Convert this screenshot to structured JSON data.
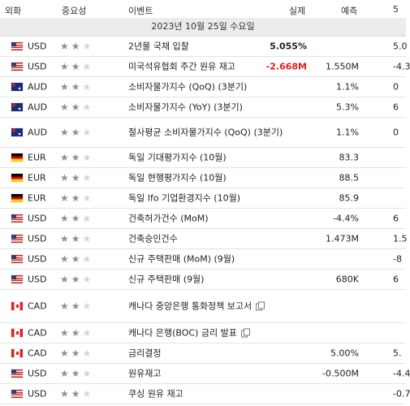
{
  "header": {
    "currency": "외화",
    "importance": "중요성",
    "event": "이벤트",
    "actual": "실제",
    "forecast": "예측",
    "previous": "5"
  },
  "date_band": "2023년 10월 25일 수요일",
  "colors": {
    "negative": "#e01d1d",
    "star_on": "#8f8f8f",
    "star_off": "#d4d4d4"
  },
  "rows": [
    {
      "flag": "us",
      "currency": "USD",
      "stars": 2,
      "event": "2년물 국채 입찰",
      "actual": "5.055%",
      "actual_color": "pos",
      "forecast": "",
      "previous": "5.0",
      "doc": false,
      "height": "normal"
    },
    {
      "flag": "us",
      "currency": "USD",
      "stars": 2,
      "event": "미국석유협회 주간 원유 재고",
      "actual": "-2.668M",
      "actual_color": "neg",
      "forecast": "1.550M",
      "previous": "-4.3",
      "doc": false,
      "height": "normal"
    },
    {
      "flag": "au",
      "currency": "AUD",
      "stars": 2,
      "event": "소비자물가지수 (QoQ) (3분기)",
      "actual": "",
      "actual_color": "pos",
      "forecast": "1.1%",
      "previous": "0",
      "doc": false,
      "height": "normal"
    },
    {
      "flag": "au",
      "currency": "AUD",
      "stars": 2,
      "event": "소비자물가지수 (YoY) (3분기)",
      "actual": "",
      "actual_color": "pos",
      "forecast": "5.3%",
      "previous": "6",
      "doc": false,
      "height": "normal"
    },
    {
      "flag": "au",
      "currency": "AUD",
      "stars": 2,
      "event": "절사평균 소비자물가지수 (QoQ) (3분기)",
      "actual": "",
      "actual_color": "pos",
      "forecast": "1.1%",
      "previous": "0",
      "doc": false,
      "height": "tall"
    },
    {
      "flag": "de",
      "currency": "EUR",
      "stars": 2,
      "event": "독일 기대평가지수 (10월)",
      "actual": "",
      "actual_color": "pos",
      "forecast": "83.3",
      "previous": "",
      "doc": false,
      "height": "normal"
    },
    {
      "flag": "de",
      "currency": "EUR",
      "stars": 2,
      "event": "독일 현행평가지수 (10월)",
      "actual": "",
      "actual_color": "pos",
      "forecast": "88.5",
      "previous": "",
      "doc": false,
      "height": "normal"
    },
    {
      "flag": "de",
      "currency": "EUR",
      "stars": 2,
      "event": "독일 Ifo 기업환경지수 (10월)",
      "actual": "",
      "actual_color": "pos",
      "forecast": "85.9",
      "previous": "",
      "doc": false,
      "height": "normal"
    },
    {
      "flag": "us",
      "currency": "USD",
      "stars": 2,
      "event": "건축허가건수 (MoM)",
      "actual": "",
      "actual_color": "pos",
      "forecast": "-4.4%",
      "previous": "6",
      "doc": false,
      "height": "normal"
    },
    {
      "flag": "us",
      "currency": "USD",
      "stars": 2,
      "event": "건축승인건수",
      "actual": "",
      "actual_color": "pos",
      "forecast": "1.473M",
      "previous": "1.5",
      "doc": false,
      "height": "normal"
    },
    {
      "flag": "us",
      "currency": "USD",
      "stars": 2,
      "event": "신규 주택판매 (MoM) (9월)",
      "actual": "",
      "actual_color": "pos",
      "forecast": "",
      "previous": "-8",
      "doc": false,
      "height": "normal"
    },
    {
      "flag": "us",
      "currency": "USD",
      "stars": 2,
      "event": "신규 주택판매 (9월)",
      "actual": "",
      "actual_color": "pos",
      "forecast": "680K",
      "previous": "6",
      "doc": false,
      "height": "normal"
    },
    {
      "flag": "ca",
      "currency": "CAD",
      "stars": 2,
      "event": "캐나다 중앙은행 통화정책 보고서",
      "actual": "",
      "actual_color": "pos",
      "forecast": "",
      "previous": "",
      "doc": true,
      "height": "xtall"
    },
    {
      "flag": "ca",
      "currency": "CAD",
      "stars": 2,
      "event": "캐나다 은행(BOC) 금리 발표",
      "actual": "",
      "actual_color": "pos",
      "forecast": "",
      "previous": "",
      "doc": true,
      "height": "normal"
    },
    {
      "flag": "ca",
      "currency": "CAD",
      "stars": 2,
      "event": "금리결정",
      "actual": "",
      "actual_color": "pos",
      "forecast": "5.00%",
      "previous": "5.",
      "doc": false,
      "height": "normal"
    },
    {
      "flag": "us",
      "currency": "USD",
      "stars": 2,
      "event": "원유재고",
      "actual": "",
      "actual_color": "pos",
      "forecast": "-0.500M",
      "previous": "-4.4",
      "doc": false,
      "height": "normal"
    },
    {
      "flag": "us",
      "currency": "USD",
      "stars": 2,
      "event": "쿠싱 원유 재고",
      "actual": "",
      "actual_color": "pos",
      "forecast": "",
      "previous": "-0.7",
      "doc": false,
      "height": "normal"
    }
  ]
}
